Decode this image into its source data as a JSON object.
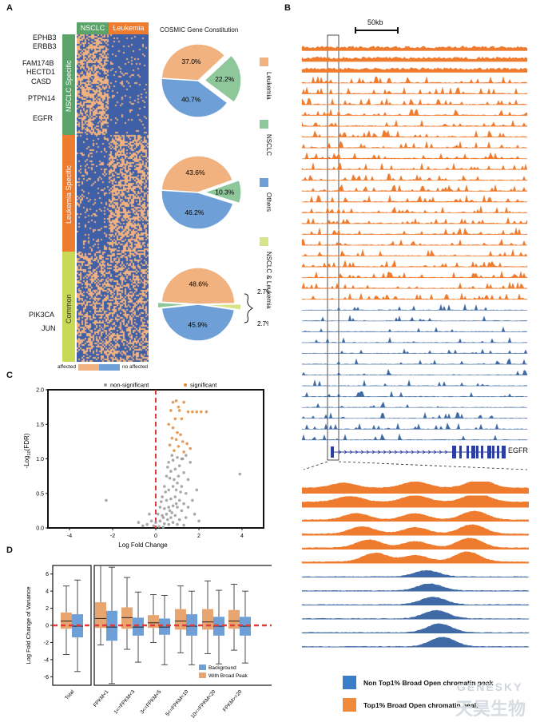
{
  "panels": {
    "a": "A",
    "b": "B",
    "c": "C",
    "d": "D"
  },
  "panel_a": {
    "col_headers": [
      "NSCLC",
      "Leukemia"
    ],
    "genes_top": [
      "EPHB3",
      "ERBB3",
      "FAM174B",
      "HECTD1",
      "CASD",
      "PTPN14",
      "EGFR"
    ],
    "genes_bottom": [
      "PIK3CA",
      "JUN"
    ],
    "groups": [
      "NSCLC Specific",
      "Leukemia Specific",
      "Common"
    ],
    "group_colors": [
      "#5aa469",
      "#ef7b2e",
      "#c7d955"
    ],
    "heat_colors": {
      "affected": "#f2b27f",
      "no_affected": "#3f5fa6"
    },
    "legend": {
      "affected": "affected",
      "no_affected": "no affected"
    },
    "pie_title": "COSMIC Gene Constitution",
    "pies": [
      {
        "slices": [
          {
            "label": "37.0%",
            "pct": 37.0,
            "cat": "Leukemia"
          },
          {
            "label": "22.2%",
            "pct": 22.2,
            "cat": "NSCLC"
          },
          {
            "label": "40.7%",
            "pct": 40.7,
            "cat": "Others"
          }
        ]
      },
      {
        "slices": [
          {
            "label": "43.6%",
            "pct": 43.6,
            "cat": "Leukemia"
          },
          {
            "label": "10.3%",
            "pct": 10.3,
            "cat": "NSCLC"
          },
          {
            "label": "46.2%",
            "pct": 46.2,
            "cat": "Others"
          }
        ]
      },
      {
        "slices": [
          {
            "label": "48.6%",
            "pct": 48.6,
            "cat": "Leukemia"
          },
          {
            "label": "2.7%",
            "pct": 2.7,
            "cat": "NSCLC & Leukemia"
          },
          {
            "label": "45.9%",
            "pct": 45.9,
            "cat": "Others"
          },
          {
            "label": "2.7%",
            "pct": 2.7,
            "cat": "NSCLC"
          }
        ]
      }
    ],
    "pie_legend": [
      {
        "label": "Leukemia",
        "color": "#f2b27f"
      },
      {
        "label": "NSCLC",
        "color": "#8ec79a"
      },
      {
        "label": "Others",
        "color": "#6e9fd6"
      },
      {
        "label": "NSCLC & Leukemia",
        "color": "#d7e58a"
      }
    ]
  },
  "panel_b": {
    "scale_label": "50kb",
    "gene_label": "EGFR",
    "n_orange_tracks": 24,
    "n_blue_tracks": 13,
    "zoom_orange": 6,
    "zoom_blue": 6,
    "colors": {
      "orange": "#ef7b2e",
      "blue": "#3f6aa5",
      "gene": "#2c3ea0"
    },
    "legend": [
      {
        "label": "Non Top1% Broad Open chromatin peak",
        "color": "#3a7dc9"
      },
      {
        "label": "Top1% Broad Open chromatin peak",
        "color": "#ef8a3a"
      }
    ]
  },
  "chart_data": [
    {
      "type": "scatter",
      "panel": "C",
      "xlabel": "Log Fold Change",
      "ylabel": "-Log10(FDR)",
      "ylabel_parts": {
        "pre": "-Log",
        "sub": "10",
        "post": "(FDR)"
      },
      "xlim": [
        -5,
        5
      ],
      "ylim": [
        0,
        2.0
      ],
      "xticks": [
        "-4",
        "-2",
        "0",
        "2",
        "4"
      ],
      "yticks": [
        "0.0",
        "0.5",
        "1.0",
        "1.5",
        "2.0"
      ],
      "legend": [
        {
          "label": "non-significant",
          "color": "#9a9a9a"
        },
        {
          "label": "significant",
          "color": "#e08a3c"
        }
      ],
      "threshold_x": 0,
      "series": [
        {
          "name": "significant",
          "points": [
            [
              0.8,
              1.82
            ],
            [
              0.95,
              1.84
            ],
            [
              1.05,
              1.75
            ],
            [
              1.3,
              1.82
            ],
            [
              0.7,
              1.7
            ],
            [
              1.1,
              1.7
            ],
            [
              1.5,
              1.68
            ],
            [
              1.7,
              1.68
            ],
            [
              1.9,
              1.68
            ],
            [
              2.1,
              1.68
            ],
            [
              2.35,
              1.68
            ],
            [
              0.9,
              1.58
            ],
            [
              1.2,
              1.58
            ],
            [
              0.6,
              1.5
            ],
            [
              0.8,
              1.45
            ],
            [
              1.0,
              1.38
            ],
            [
              1.15,
              1.35
            ],
            [
              0.75,
              1.3
            ],
            [
              0.95,
              1.28
            ],
            [
              1.25,
              1.25
            ],
            [
              1.45,
              1.22
            ],
            [
              0.65,
              1.2
            ],
            [
              1.05,
              1.18
            ],
            [
              1.6,
              1.15
            ],
            [
              0.85,
              1.12
            ],
            [
              1.3,
              1.1
            ]
          ]
        },
        {
          "name": "non-significant",
          "points": [
            [
              -2.3,
              0.4
            ],
            [
              3.9,
              0.78
            ],
            [
              2.0,
              0.1
            ],
            [
              1.9,
              0.55
            ],
            [
              1.6,
              0.95
            ],
            [
              1.4,
              1.05
            ],
            [
              1.2,
              1.0
            ],
            [
              1.0,
              1.02
            ],
            [
              0.8,
              0.98
            ],
            [
              0.6,
              0.95
            ],
            [
              1.1,
              0.9
            ],
            [
              0.9,
              0.85
            ],
            [
              0.7,
              0.82
            ],
            [
              0.5,
              0.75
            ],
            [
              1.3,
              0.8
            ],
            [
              1.5,
              0.7
            ],
            [
              0.4,
              0.6
            ],
            [
              0.6,
              0.55
            ],
            [
              0.8,
              0.6
            ],
            [
              1.0,
              0.65
            ],
            [
              1.2,
              0.6
            ],
            [
              1.4,
              0.5
            ],
            [
              0.3,
              0.45
            ],
            [
              0.5,
              0.4
            ],
            [
              0.7,
              0.42
            ],
            [
              0.9,
              0.45
            ],
            [
              1.1,
              0.4
            ],
            [
              1.3,
              0.35
            ],
            [
              0.2,
              0.3
            ],
            [
              0.4,
              0.28
            ],
            [
              0.6,
              0.3
            ],
            [
              0.8,
              0.32
            ],
            [
              1.0,
              0.3
            ],
            [
              1.2,
              0.25
            ],
            [
              1.5,
              0.3
            ],
            [
              0.1,
              0.2
            ],
            [
              0.3,
              0.18
            ],
            [
              0.5,
              0.2
            ],
            [
              0.7,
              0.15
            ],
            [
              0.9,
              0.18
            ],
            [
              1.1,
              0.12
            ],
            [
              1.4,
              0.15
            ],
            [
              -0.2,
              0.1
            ],
            [
              0.0,
              0.08
            ],
            [
              0.2,
              0.1
            ],
            [
              0.4,
              0.06
            ],
            [
              0.6,
              0.05
            ],
            [
              0.8,
              0.08
            ],
            [
              1.0,
              0.05
            ],
            [
              1.3,
              0.04
            ],
            [
              -0.4,
              0.05
            ],
            [
              -0.6,
              0.03
            ],
            [
              -0.1,
              0.03
            ],
            [
              0.15,
              0.02
            ],
            [
              0.35,
              0.01
            ],
            [
              0.55,
              0.12
            ],
            [
              0.75,
              0.22
            ],
            [
              0.95,
              0.55
            ],
            [
              0.85,
              0.7
            ],
            [
              0.65,
              0.72
            ],
            [
              1.05,
              0.75
            ],
            [
              0.45,
              0.52
            ],
            [
              0.25,
              0.38
            ],
            [
              0.55,
              0.88
            ],
            [
              0.75,
              1.05
            ],
            [
              1.25,
              1.0
            ],
            [
              0.95,
              0.35
            ],
            [
              1.15,
              0.52
            ],
            [
              0.35,
              0.15
            ],
            [
              0.65,
              0.25
            ],
            [
              1.7,
              0.4
            ],
            [
              1.8,
              0.2
            ],
            [
              -0.3,
              0.2
            ],
            [
              -0.8,
              0.08
            ]
          ]
        }
      ]
    },
    {
      "type": "box",
      "panel": "D",
      "ylabel": "Log Fold Change of Variance",
      "ylim": [
        -7,
        7
      ],
      "yticks": [
        "-6",
        "-4",
        "-2",
        "0",
        "2",
        "4",
        "6"
      ],
      "categories": [
        "Total",
        "FPKM<1",
        "1<=FPKM<3",
        "3<=FPKM<5",
        "5<=FPKM<10",
        "10<=FPKM<20",
        "FPKM>=20"
      ],
      "series": [
        {
          "name": "With Broad Peak",
          "color": "#e8a570",
          "boxes": [
            {
              "min": -3.4,
              "q1": -0.4,
              "med": 0.5,
              "q3": 1.5,
              "max": 4.6
            },
            {
              "min": -2.3,
              "q1": -0.3,
              "med": 0.8,
              "q3": 2.7,
              "max": 7.0
            },
            {
              "min": -2.8,
              "q1": -0.4,
              "med": 0.9,
              "q3": 2.1,
              "max": 5.6
            },
            {
              "min": -2.0,
              "q1": -0.3,
              "med": 0.3,
              "q3": 1.2,
              "max": 3.6
            },
            {
              "min": -3.2,
              "q1": -0.5,
              "med": 0.5,
              "q3": 1.9,
              "max": 4.6
            },
            {
              "min": -3.3,
              "q1": -0.5,
              "med": 0.4,
              "q3": 1.9,
              "max": 5.2
            },
            {
              "min": -2.9,
              "q1": -0.4,
              "med": 0.5,
              "q3": 1.8,
              "max": 4.8
            }
          ]
        },
        {
          "name": "Background",
          "color": "#6e9fd6",
          "boxes": [
            {
              "min": -5.4,
              "q1": -1.4,
              "med": -0.1,
              "q3": 1.3,
              "max": 5.3
            },
            {
              "min": -6.8,
              "q1": -1.8,
              "med": -0.2,
              "q3": 1.7,
              "max": 6.8
            },
            {
              "min": -4.3,
              "q1": -1.2,
              "med": -0.2,
              "q3": 0.9,
              "max": 3.9
            },
            {
              "min": -4.6,
              "q1": -1.1,
              "med": -0.2,
              "q3": 0.8,
              "max": 3.5
            },
            {
              "min": -4.6,
              "q1": -1.2,
              "med": -0.1,
              "q3": 1.3,
              "max": 4.0
            },
            {
              "min": -4.5,
              "q1": -1.2,
              "med": -0.1,
              "q3": 1.0,
              "max": 4.1
            },
            {
              "min": -4.4,
              "q1": -1.2,
              "med": -0.1,
              "q3": 1.0,
              "max": 4.0
            }
          ]
        }
      ],
      "legend": [
        {
          "label": "Background",
          "color": "#6e9fd6"
        },
        {
          "label": "With Broad Peak",
          "color": "#e8a570"
        }
      ],
      "reference_line": 0
    }
  ],
  "watermark": {
    "line1": "GENESKY",
    "line2": "天昊生物"
  }
}
